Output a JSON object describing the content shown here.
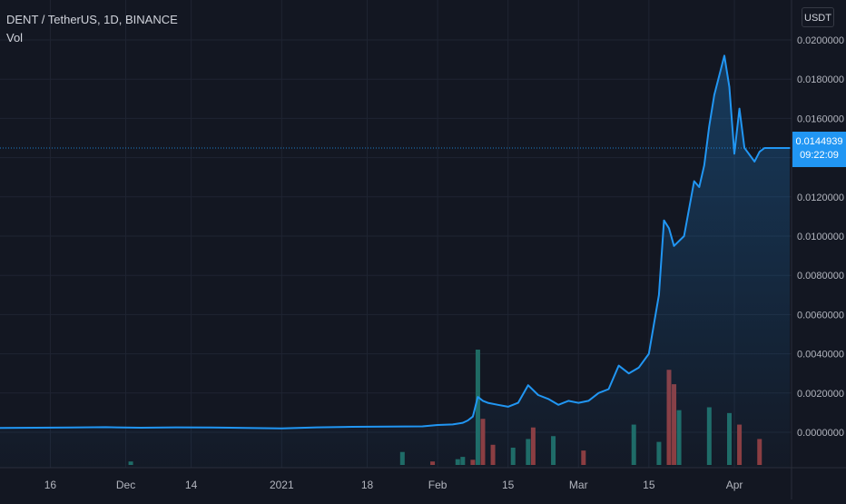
{
  "legend": {
    "symbol": "DENT / TetherUS, 1D, BINANCE",
    "volume_label": "Vol"
  },
  "currency_button": "USDT",
  "last_price": {
    "value": "0.0144939",
    "countdown": "09:22:09"
  },
  "colors": {
    "background": "#131722",
    "grid": "#1f2432",
    "line": "#2196f3",
    "volume_up": "#1f6b64",
    "volume_down": "#8e3b3d",
    "text": "#b2b5be"
  },
  "chart_data": {
    "type": "line",
    "title": "DENT / TetherUS, 1D, BINANCE",
    "x_ticks": [
      "16",
      "Dec",
      "14",
      "2021",
      "18",
      "Feb",
      "15",
      "Mar",
      "15",
      "Apr"
    ],
    "y_ticks": [
      "0.0000000",
      "0.0020000",
      "0.0040000",
      "0.0060000",
      "0.0080000",
      "0.0100000",
      "0.0120000",
      "0.0140000",
      "0.0160000",
      "0.0180000",
      "0.0200000"
    ],
    "ylim": [
      -0.0015,
      0.02
    ],
    "grid": true,
    "series": [
      {
        "name": "DENT / TetherUS",
        "x": [
          "2020-11-06",
          "2020-11-13",
          "2020-11-20",
          "2020-11-27",
          "2020-12-04",
          "2020-12-11",
          "2020-12-18",
          "2020-12-25",
          "2021-01-01",
          "2021-01-08",
          "2021-01-15",
          "2021-01-22",
          "2021-01-29",
          "2021-02-01",
          "2021-02-04",
          "2021-02-06",
          "2021-02-07",
          "2021-02-08",
          "2021-02-09",
          "2021-02-10",
          "2021-02-11",
          "2021-02-13",
          "2021-02-15",
          "2021-02-17",
          "2021-02-19",
          "2021-02-21",
          "2021-02-23",
          "2021-02-25",
          "2021-02-27",
          "2021-03-01",
          "2021-03-03",
          "2021-03-05",
          "2021-03-07",
          "2021-03-09",
          "2021-03-11",
          "2021-03-13",
          "2021-03-15",
          "2021-03-17",
          "2021-03-18",
          "2021-03-19",
          "2021-03-20",
          "2021-03-22",
          "2021-03-24",
          "2021-03-25",
          "2021-03-26",
          "2021-03-27",
          "2021-03-28",
          "2021-03-30",
          "2021-03-31",
          "2021-04-01",
          "2021-04-02",
          "2021-04-03",
          "2021-04-05",
          "2021-04-06",
          "2021-04-07",
          "2021-04-08",
          "2021-04-09",
          "2021-04-10",
          "2021-04-11",
          "2021-04-12"
        ],
        "y": [
          0.00022,
          0.00023,
          0.00024,
          0.00026,
          0.00023,
          0.00025,
          0.00024,
          0.00022,
          0.0002,
          0.00025,
          0.00028,
          0.00029,
          0.0003,
          0.00037,
          0.0004,
          0.00048,
          0.0006,
          0.0008,
          0.0018,
          0.0016,
          0.0015,
          0.0014,
          0.0013,
          0.0015,
          0.0024,
          0.0019,
          0.0017,
          0.0014,
          0.0016,
          0.0015,
          0.0016,
          0.002,
          0.0022,
          0.0034,
          0.003,
          0.0033,
          0.004,
          0.007,
          0.0108,
          0.0104,
          0.0095,
          0.01,
          0.0128,
          0.0125,
          0.0136,
          0.0156,
          0.0172,
          0.0192,
          0.0176,
          0.0142,
          0.0165,
          0.0145,
          0.0138,
          0.0143,
          0.01449,
          0.01449,
          0.01449,
          0.01449,
          0.01449,
          0.01449
        ]
      }
    ],
    "volume": [
      {
        "x": "2020-12-02",
        "value": 0.00012,
        "dir": "up"
      },
      {
        "x": "2021-01-25",
        "value": 0.00045,
        "dir": "up"
      },
      {
        "x": "2021-01-31",
        "value": 0.00012,
        "dir": "down"
      },
      {
        "x": "2021-02-05",
        "value": 0.0002,
        "dir": "up"
      },
      {
        "x": "2021-02-06",
        "value": 0.00028,
        "dir": "up"
      },
      {
        "x": "2021-02-08",
        "value": 0.00018,
        "dir": "down"
      },
      {
        "x": "2021-02-09",
        "value": 0.004,
        "dir": "up"
      },
      {
        "x": "2021-02-10",
        "value": 0.0016,
        "dir": "down"
      },
      {
        "x": "2021-02-12",
        "value": 0.0007,
        "dir": "down"
      },
      {
        "x": "2021-02-16",
        "value": 0.0006,
        "dir": "up"
      },
      {
        "x": "2021-02-19",
        "value": 0.0009,
        "dir": "up"
      },
      {
        "x": "2021-02-20",
        "value": 0.0013,
        "dir": "down"
      },
      {
        "x": "2021-02-24",
        "value": 0.001,
        "dir": "up"
      },
      {
        "x": "2021-03-02",
        "value": 0.0005,
        "dir": "down"
      },
      {
        "x": "2021-03-12",
        "value": 0.0014,
        "dir": "up"
      },
      {
        "x": "2021-03-17",
        "value": 0.0008,
        "dir": "up"
      },
      {
        "x": "2021-03-19",
        "value": 0.0033,
        "dir": "down"
      },
      {
        "x": "2021-03-20",
        "value": 0.0028,
        "dir": "down"
      },
      {
        "x": "2021-03-21",
        "value": 0.0019,
        "dir": "up"
      },
      {
        "x": "2021-03-27",
        "value": 0.002,
        "dir": "up"
      },
      {
        "x": "2021-03-31",
        "value": 0.0018,
        "dir": "up"
      },
      {
        "x": "2021-04-02",
        "value": 0.0014,
        "dir": "down"
      },
      {
        "x": "2021-04-06",
        "value": 0.0009,
        "dir": "down"
      }
    ]
  }
}
